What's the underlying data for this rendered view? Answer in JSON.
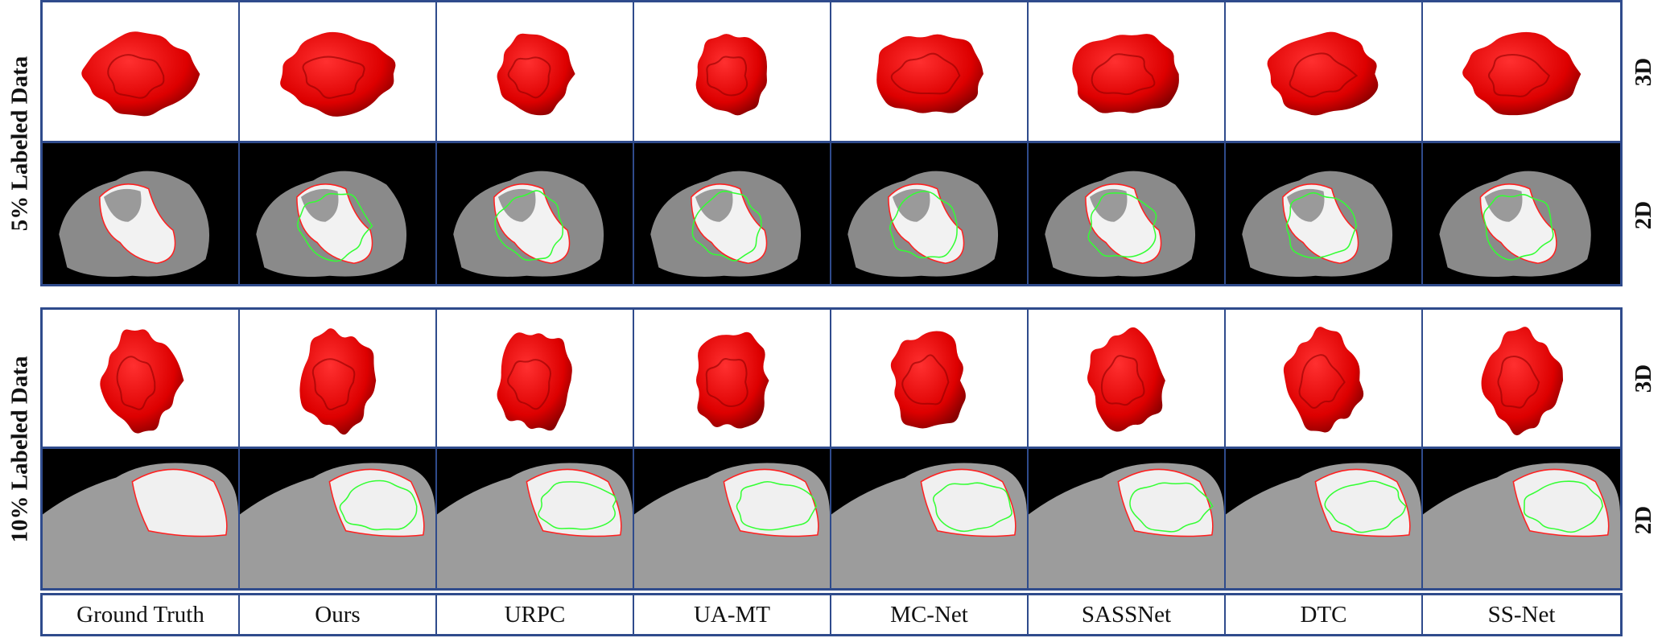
{
  "sections": [
    {
      "label": "5% Labeled Data",
      "row_labels": [
        "3D",
        "2D"
      ]
    },
    {
      "label": "10% Labeled Data",
      "row_labels": [
        "3D",
        "2D"
      ]
    }
  ],
  "methods": [
    "Ground Truth",
    "Ours",
    "URPC",
    "UA-MT",
    "MC-Net",
    "SASSNet",
    "DTC",
    "SS-Net"
  ],
  "colors": {
    "border": "#2f4b8c",
    "tumor": "#e00000",
    "ground_truth_contour": "#ff2020",
    "prediction_contour": "#33ff33"
  }
}
